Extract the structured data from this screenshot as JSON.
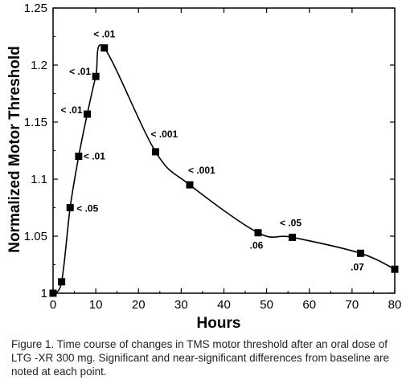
{
  "chart_data": {
    "type": "scatter",
    "xlabel": "Hours",
    "ylabel": "Normalized Motor Threshold",
    "xlim": [
      0,
      80
    ],
    "ylim": [
      1,
      1.25
    ],
    "xticks": [
      "0",
      "10",
      "20",
      "30",
      "40",
      "50",
      "60",
      "70",
      "80"
    ],
    "yticks": [
      "1",
      "1.05",
      "1.1",
      "1.15",
      "1.2",
      "1.25"
    ],
    "grid": false,
    "series": [
      {
        "marker": "square",
        "line": "smooth",
        "x": [
          0,
          2,
          4,
          6,
          8,
          10,
          12,
          24,
          32,
          48,
          56,
          72,
          80
        ],
        "y": [
          1.0,
          1.01,
          1.075,
          1.12,
          1.157,
          1.19,
          1.215,
          1.124,
          1.095,
          1.053,
          1.049,
          1.035,
          1.021
        ]
      }
    ],
    "point_labels": [
      {
        "text": "< .05",
        "x": 4,
        "y": 1.075
      },
      {
        "text": "< .01",
        "x": 6,
        "y": 1.12
      },
      {
        "text": "< .01",
        "x": 8,
        "y": 1.157
      },
      {
        "text": "< .01",
        "x": 10,
        "y": 1.19
      },
      {
        "text": "< .01",
        "x": 12,
        "y": 1.215
      },
      {
        "text": "< .001",
        "x": 24,
        "y": 1.124
      },
      {
        "text": "< .001",
        "x": 32,
        "y": 1.095
      },
      {
        "text": ".06",
        "x": 48,
        "y": 1.053
      },
      {
        "text": "< .05",
        "x": 56,
        "y": 1.049
      },
      {
        "text": ".07",
        "x": 72,
        "y": 1.035
      }
    ]
  },
  "caption": "Figure 1.  Time course of changes in TMS motor threshold after an oral dose of LTG -XR 300 mg.  Significant and near-significant differences from baseline are noted at each point."
}
